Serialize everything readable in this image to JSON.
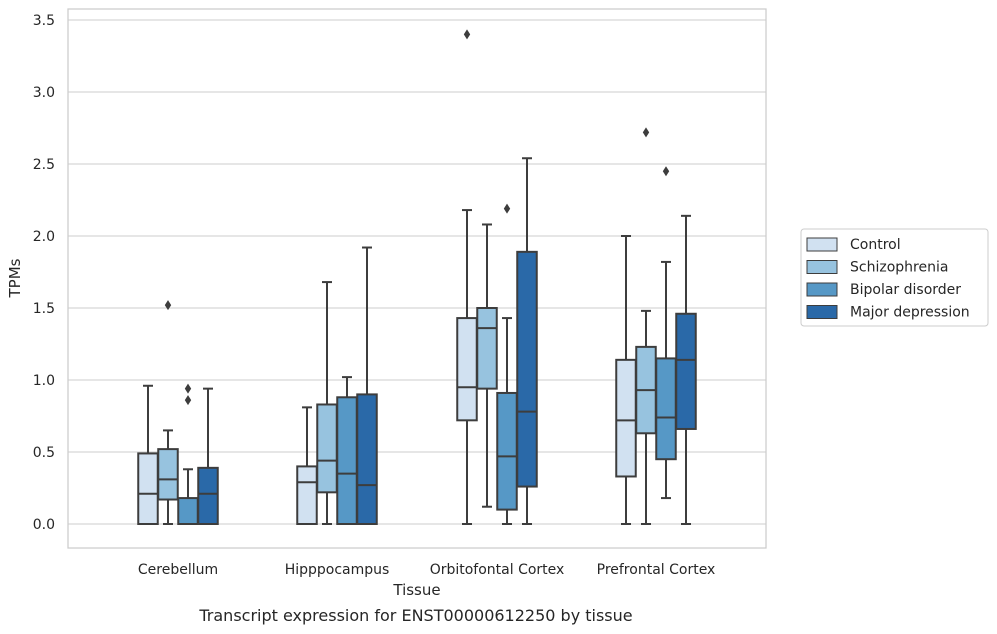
{
  "caption": "Transcript expression for ENST00000612250 by tissue",
  "chart_data": {
    "type": "box",
    "title": "",
    "xlabel": "Tissue",
    "ylabel": "TPMs",
    "ylim": [
      -0.17,
      3.57
    ],
    "yticks": [
      "0.0",
      "0.5",
      "1.0",
      "1.5",
      "2.0",
      "2.5",
      "3.0",
      "3.5"
    ],
    "ytick_values": [
      0,
      0.5,
      1.0,
      1.5,
      2.0,
      2.5,
      3.0,
      3.5
    ],
    "grid": "horizontal",
    "legend_position": "right",
    "categories": [
      "Cerebellum",
      "Hipppocampus",
      "Orbitofontal Cortex",
      "Prefrontal Cortex"
    ],
    "series": [
      {
        "name": "Control",
        "color": "#d1e1f1",
        "boxes": [
          {
            "whisker_low": 0.0,
            "q1": 0.0,
            "median": 0.21,
            "q3": 0.49,
            "whisker_high": 0.96,
            "outliers": []
          },
          {
            "whisker_low": 0.0,
            "q1": 0.0,
            "median": 0.29,
            "q3": 0.4,
            "whisker_high": 0.81,
            "outliers": []
          },
          {
            "whisker_low": 0.0,
            "q1": 0.72,
            "median": 0.95,
            "q3": 1.43,
            "whisker_high": 2.18,
            "outliers": [
              3.4
            ]
          },
          {
            "whisker_low": 0.0,
            "q1": 0.33,
            "median": 0.72,
            "q3": 1.14,
            "whisker_high": 2.0,
            "outliers": []
          }
        ]
      },
      {
        "name": "Schizophrenia",
        "color": "#97c3df",
        "boxes": [
          {
            "whisker_low": 0.0,
            "q1": 0.17,
            "median": 0.31,
            "q3": 0.52,
            "whisker_high": 0.65,
            "outliers": [
              1.52
            ]
          },
          {
            "whisker_low": 0.0,
            "q1": 0.22,
            "median": 0.44,
            "q3": 0.83,
            "whisker_high": 1.68,
            "outliers": []
          },
          {
            "whisker_low": 0.12,
            "q1": 0.94,
            "median": 1.36,
            "q3": 1.5,
            "whisker_high": 2.08,
            "outliers": []
          },
          {
            "whisker_low": 0.0,
            "q1": 0.63,
            "median": 0.93,
            "q3": 1.23,
            "whisker_high": 1.48,
            "outliers": [
              2.72
            ]
          }
        ]
      },
      {
        "name": "Bipolar disorder",
        "color": "#5698c6",
        "boxes": [
          {
            "whisker_low": 0.0,
            "q1": 0.0,
            "median": 0.0,
            "q3": 0.18,
            "whisker_high": 0.38,
            "outliers": [
              0.86,
              0.94
            ]
          },
          {
            "whisker_low": 0.0,
            "q1": 0.0,
            "median": 0.35,
            "q3": 0.88,
            "whisker_high": 1.02,
            "outliers": []
          },
          {
            "whisker_low": 0.0,
            "q1": 0.1,
            "median": 0.47,
            "q3": 0.91,
            "whisker_high": 1.43,
            "outliers": [
              2.19
            ]
          },
          {
            "whisker_low": 0.18,
            "q1": 0.45,
            "median": 0.74,
            "q3": 1.15,
            "whisker_high": 1.82,
            "outliers": [
              2.45
            ]
          }
        ]
      },
      {
        "name": "Major depression",
        "color": "#2a69a8",
        "boxes": [
          {
            "whisker_low": 0.0,
            "q1": 0.0,
            "median": 0.21,
            "q3": 0.39,
            "whisker_high": 0.94,
            "outliers": []
          },
          {
            "whisker_low": 0.0,
            "q1": 0.0,
            "median": 0.27,
            "q3": 0.9,
            "whisker_high": 1.92,
            "outliers": []
          },
          {
            "whisker_low": 0.0,
            "q1": 0.26,
            "median": 0.78,
            "q3": 1.89,
            "whisker_high": 2.54,
            "outliers": []
          },
          {
            "whisker_low": 0.0,
            "q1": 0.66,
            "median": 1.14,
            "q3": 1.46,
            "whisker_high": 2.14,
            "outliers": []
          }
        ]
      }
    ]
  }
}
